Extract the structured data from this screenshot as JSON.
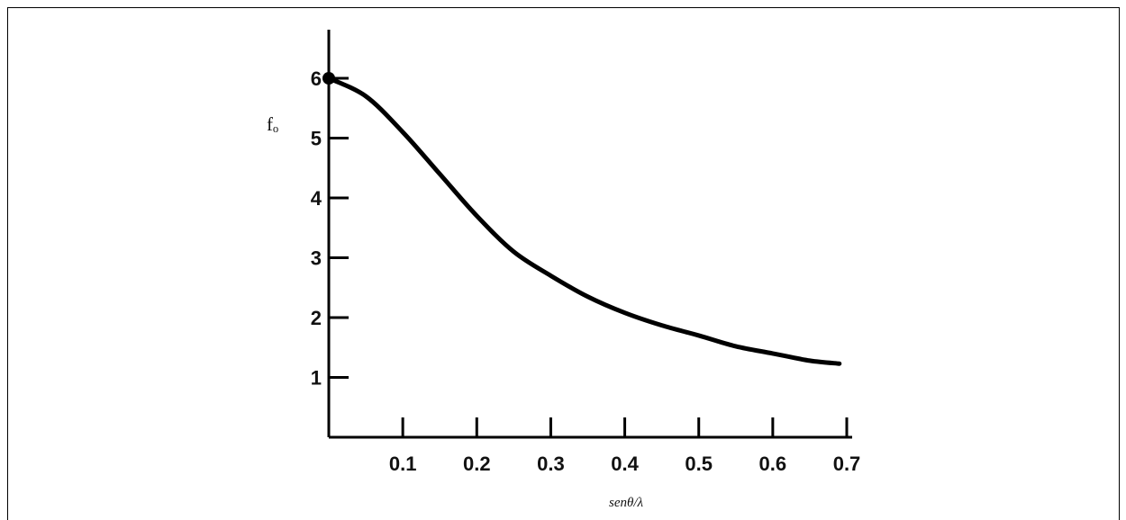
{
  "chart_data": {
    "type": "line",
    "title": "",
    "xlabel": "senθ/λ",
    "ylabel": "fₒ",
    "xlim": [
      0,
      0.7
    ],
    "ylim": [
      0,
      6.7
    ],
    "x_ticks": [
      0.1,
      0.2,
      0.3,
      0.4,
      0.5,
      0.6,
      0.7
    ],
    "x_tick_labels": [
      "0.1",
      "0.2",
      "0.3",
      "0.4",
      "0.5",
      "0.6",
      "0.7"
    ],
    "y_ticks": [
      1,
      2,
      3,
      4,
      5,
      6
    ],
    "y_tick_labels": [
      "1",
      "2",
      "3",
      "4",
      "5",
      "6"
    ],
    "grid": false,
    "series": [
      {
        "x": [
          0,
          0.05,
          0.1,
          0.15,
          0.2,
          0.25,
          0.3,
          0.35,
          0.4,
          0.45,
          0.5,
          0.55,
          0.6,
          0.65,
          0.69
        ],
        "y": [
          6.0,
          5.7,
          5.1,
          4.4,
          3.7,
          3.1,
          2.7,
          2.35,
          2.08,
          1.87,
          1.7,
          1.52,
          1.4,
          1.28,
          1.23
        ]
      }
    ]
  }
}
